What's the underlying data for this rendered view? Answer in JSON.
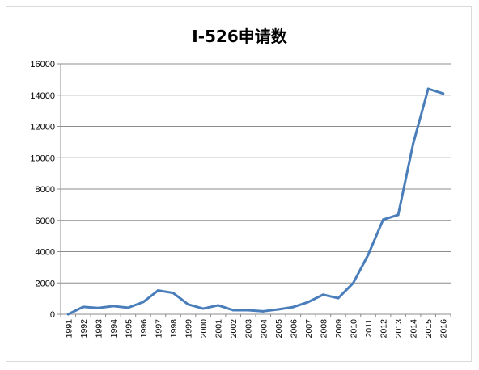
{
  "chart_data": {
    "type": "line",
    "title": "I-526申请数",
    "xlabel": "",
    "ylabel": "",
    "ylim": [
      0,
      16000
    ],
    "yticks": [
      0,
      2000,
      4000,
      6000,
      8000,
      10000,
      12000,
      14000,
      16000
    ],
    "grid": true,
    "legend": "none",
    "categories": [
      "1991",
      "1992",
      "1993",
      "1994",
      "1995",
      "1996",
      "1997",
      "1998",
      "1999",
      "2000",
      "2001",
      "2002",
      "2003",
      "2004",
      "2005",
      "2006",
      "2007",
      "2008",
      "2009",
      "2010",
      "2011",
      "2012",
      "2013",
      "2014",
      "2015",
      "2016"
    ],
    "series": [
      {
        "color": "#4a7ebb",
        "values": [
          0,
          470,
          400,
          520,
          420,
          780,
          1520,
          1360,
          630,
          360,
          570,
          260,
          260,
          190,
          310,
          460,
          780,
          1250,
          1030,
          1990,
          3800,
          6050,
          6350,
          10900,
          14400,
          14100
        ]
      }
    ]
  }
}
